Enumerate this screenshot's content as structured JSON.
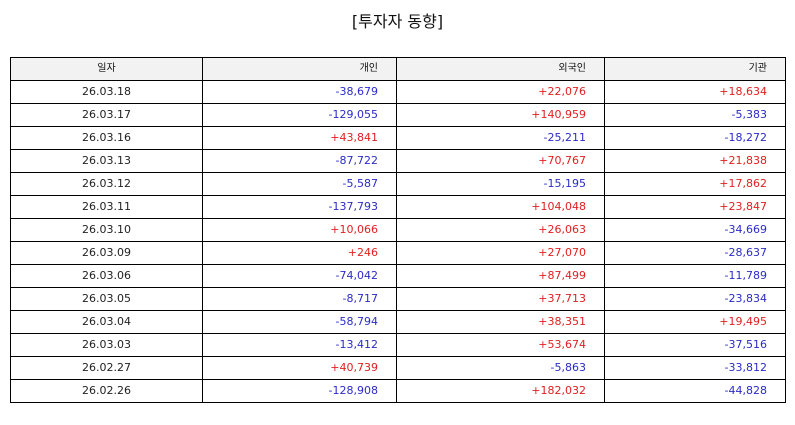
{
  "title": "[투자자 동향]",
  "colors": {
    "positive": "#e02020",
    "negative": "#2b2bc8",
    "header_bg": "#f2f2f2"
  },
  "chart_data": {
    "type": "table",
    "title": "[투자자 동향]",
    "columns": [
      "일자",
      "개인",
      "외국인",
      "기관"
    ],
    "rows": [
      [
        "26.03.18",
        "-38,679",
        "+22,076",
        "+18,634"
      ],
      [
        "26.03.17",
        "-129,055",
        "+140,959",
        "-5,383"
      ],
      [
        "26.03.16",
        "+43,841",
        "-25,211",
        "-18,272"
      ],
      [
        "26.03.13",
        "-87,722",
        "+70,767",
        "+21,838"
      ],
      [
        "26.03.12",
        "-5,587",
        "-15,195",
        "+17,862"
      ],
      [
        "26.03.11",
        "-137,793",
        "+104,048",
        "+23,847"
      ],
      [
        "26.03.10",
        "+10,066",
        "+26,063",
        "-34,669"
      ],
      [
        "26.03.09",
        "+246",
        "+27,070",
        "-28,637"
      ],
      [
        "26.03.06",
        "-74,042",
        "+87,499",
        "-11,789"
      ],
      [
        "26.03.05",
        "-8,717",
        "+37,713",
        "-23,834"
      ],
      [
        "26.03.04",
        "-58,794",
        "+38,351",
        "+19,495"
      ],
      [
        "26.03.03",
        "-13,412",
        "+53,674",
        "-37,516"
      ],
      [
        "26.02.27",
        "+40,739",
        "-5,863",
        "-33,812"
      ],
      [
        "26.02.26",
        "-128,908",
        "+182,032",
        "-44,828"
      ]
    ]
  }
}
